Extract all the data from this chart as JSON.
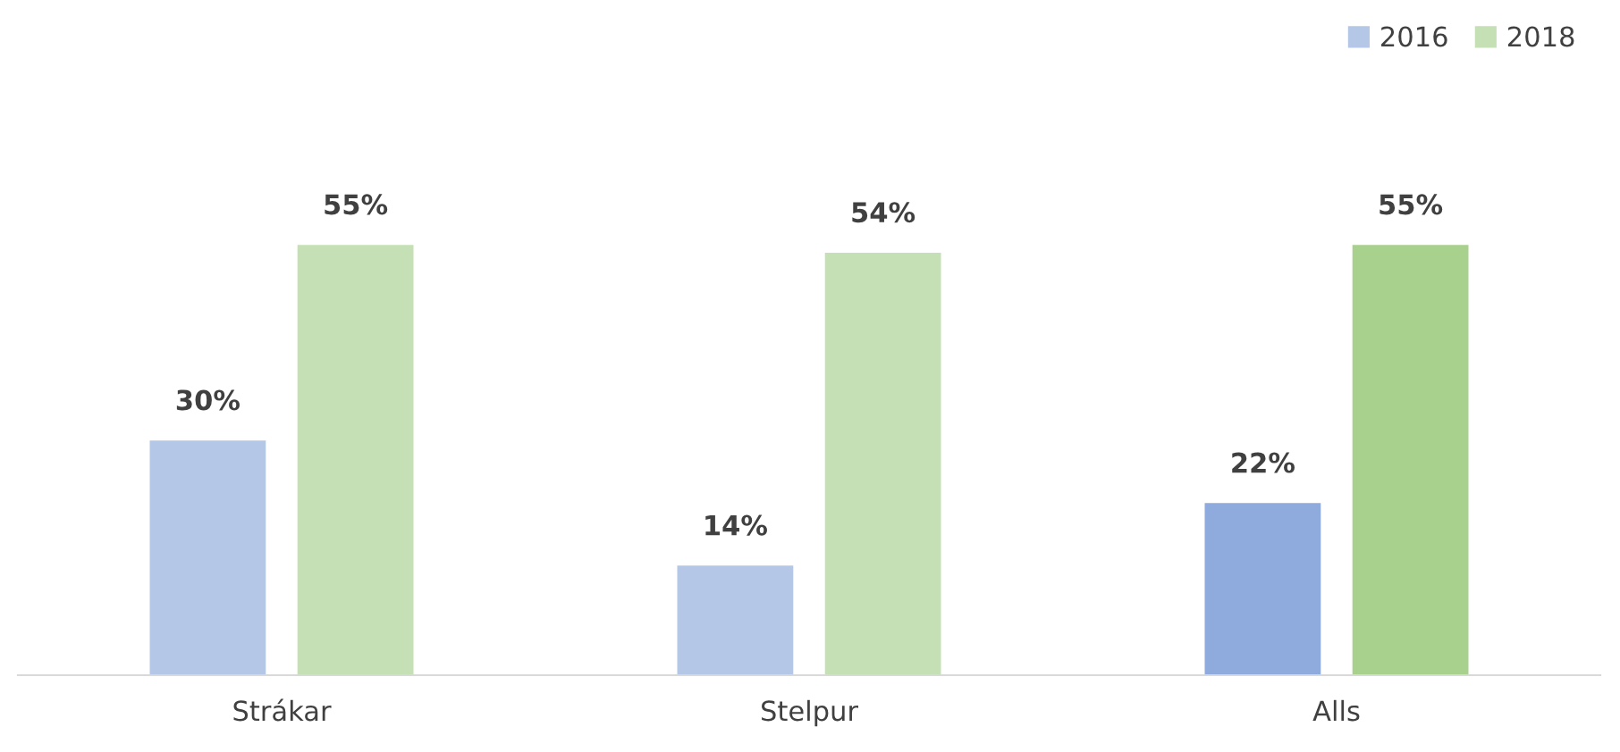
{
  "chart_data": {
    "type": "bar",
    "categories": [
      "Strákar",
      "Stelpur",
      "Alls"
    ],
    "series": [
      {
        "name": "2016",
        "color": "#b4c7e7",
        "colors": [
          "#b4c7e7",
          "#b4c7e7",
          "#8faadc"
        ],
        "values": [
          30,
          14,
          22
        ],
        "value_labels": [
          "30%",
          "14%",
          "22%"
        ]
      },
      {
        "name": "2018",
        "color": "#c5e0b4",
        "colors": [
          "#c5e0b4",
          "#c5e0b4",
          "#a9d18e"
        ],
        "values": [
          55,
          54,
          55
        ],
        "value_labels": [
          "55%",
          "54%",
          "55%"
        ]
      }
    ],
    "legend": "top right",
    "grid": false
  }
}
